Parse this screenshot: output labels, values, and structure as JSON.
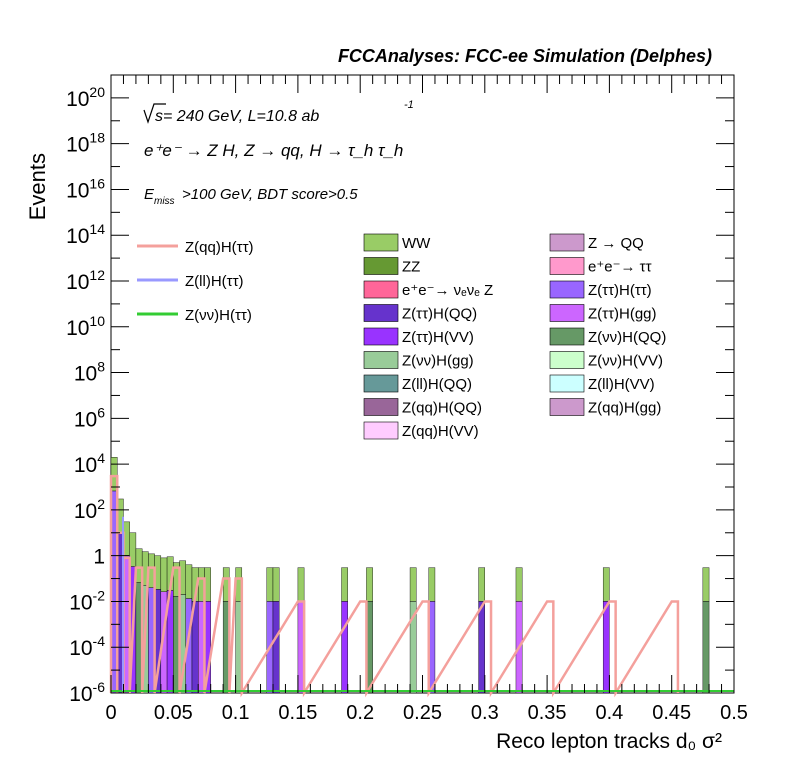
{
  "header": {
    "title": "FCCAnalyses: FCC-ee Simulation (Delphes)"
  },
  "annotations": {
    "energy_sqrt": "s",
    "energy_rest": " = 240 GeV, L=10.8 ab",
    "energy_exp": "-1",
    "process": "e⁺e⁻ → Z H, Z → qq, H → τ_h τ_h",
    "cut_E": "E",
    "cut_sub": "miss",
    "cut_rest": ">100 GeV, BDT score>0.5"
  },
  "chart_data": {
    "type": "bar",
    "title": "FCCAnalyses: FCC-ee Simulation (Delphes)",
    "xlabel": "Reco lepton tracks d₀ σ²",
    "ylabel": "Events",
    "yscale": "log",
    "xlim": [
      0,
      0.5
    ],
    "ylim": [
      1e-06,
      1e+21
    ],
    "x_ticks": [
      "0",
      "0.05",
      "0.1",
      "0.15",
      "0.2",
      "0.25",
      "0.3",
      "0.35",
      "0.4",
      "0.45",
      "0.5"
    ],
    "y_ticks": [
      {
        "base": "10",
        "exp": "-6"
      },
      {
        "base": "10",
        "exp": "-4"
      },
      {
        "base": "10",
        "exp": "-2"
      },
      {
        "base": "1",
        "exp": ""
      },
      {
        "base": "10",
        "exp": "2"
      },
      {
        "base": "10",
        "exp": "4"
      },
      {
        "base": "10",
        "exp": "6"
      },
      {
        "base": "10",
        "exp": "8"
      },
      {
        "base": "10",
        "exp": "10"
      },
      {
        "base": "10",
        "exp": "12"
      },
      {
        "base": "10",
        "exp": "14"
      },
      {
        "base": "10",
        "exp": "16"
      },
      {
        "base": "10",
        "exp": "18"
      },
      {
        "base": "10",
        "exp": "20"
      }
    ],
    "grid": false,
    "legend_position": "top-right",
    "signal_series": [
      {
        "name": "Z(qq)H(ττ)",
        "color": "#f4a09c"
      },
      {
        "name": "Z(ll)H(ττ)",
        "color": "#9999ff"
      },
      {
        "name": "Z(νν)H(ττ)",
        "color": "#33cc33"
      }
    ],
    "background_series": [
      {
        "name": "WW",
        "color": "#99cc66"
      },
      {
        "name": "Z → QQ",
        "color": "#cc99cc"
      },
      {
        "name": "ZZ",
        "color": "#669933"
      },
      {
        "name": "e⁺e⁻→ ττ",
        "color": "#ff99cc"
      },
      {
        "name": "e⁺e⁻→ νₑνₑ Z",
        "color": "#ff6699"
      },
      {
        "name": "Z(ττ)H(ττ)",
        "color": "#9966ff"
      },
      {
        "name": "Z(ττ)H(QQ)",
        "color": "#6633cc"
      },
      {
        "name": "Z(ττ)H(gg)",
        "color": "#cc66ff"
      },
      {
        "name": "Z(ττ)H(VV)",
        "color": "#9933ff"
      },
      {
        "name": "Z(νν)H(QQ)",
        "color": "#669966"
      },
      {
        "name": "Z(νν)H(gg)",
        "color": "#99cc99"
      },
      {
        "name": "Z(νν)H(VV)",
        "color": "#ccffcc"
      },
      {
        "name": "Z(ll)H(QQ)",
        "color": "#669999"
      },
      {
        "name": "Z(ll)H(VV)",
        "color": "#ccffff"
      },
      {
        "name": "Z(qq)H(QQ)",
        "color": "#996699"
      },
      {
        "name": "Z(qq)H(gg)",
        "color": "#cc99cc"
      },
      {
        "name": "Z(qq)H(VV)",
        "color": "#ffccff"
      }
    ],
    "bins": {
      "edges_start": 0,
      "bin_width": 0.005,
      "background_stack_top": [
        {
          "x": 0.0,
          "y": 20000
        },
        {
          "x": 0.005,
          "y": 300
        },
        {
          "x": 0.01,
          "y": 30
        },
        {
          "x": 0.015,
          "y": 10
        },
        {
          "x": 0.02,
          "y": 2
        },
        {
          "x": 0.025,
          "y": 1.5
        },
        {
          "x": 0.03,
          "y": 1.2
        },
        {
          "x": 0.035,
          "y": 1
        },
        {
          "x": 0.04,
          "y": 0.8
        },
        {
          "x": 0.045,
          "y": 0.9
        },
        {
          "x": 0.05,
          "y": 0.5
        },
        {
          "x": 0.055,
          "y": 0.6
        },
        {
          "x": 0.06,
          "y": 0.4
        },
        {
          "x": 0.065,
          "y": 0.3
        },
        {
          "x": 0.07,
          "y": 0.3
        },
        {
          "x": 0.075,
          "y": 0.3
        },
        {
          "x": 0.09,
          "y": 0.3
        },
        {
          "x": 0.1,
          "y": 0.3
        },
        {
          "x": 0.125,
          "y": 0.3
        },
        {
          "x": 0.13,
          "y": 0.3
        },
        {
          "x": 0.15,
          "y": 0.3
        },
        {
          "x": 0.185,
          "y": 0.3
        },
        {
          "x": 0.205,
          "y": 0.3
        },
        {
          "x": 0.24,
          "y": 0.3
        },
        {
          "x": 0.255,
          "y": 0.3
        },
        {
          "x": 0.295,
          "y": 0.3
        },
        {
          "x": 0.325,
          "y": 0.3
        },
        {
          "x": 0.395,
          "y": 0.3
        },
        {
          "x": 0.475,
          "y": 0.3
        }
      ],
      "signal_qqH": [
        {
          "x": 0.0,
          "y": 3000
        },
        {
          "x": 0.005,
          "y": 10
        },
        {
          "x": 0.01,
          "y": 0.8
        },
        {
          "x": 0.02,
          "y": 0.3
        },
        {
          "x": 0.03,
          "y": 0.3
        },
        {
          "x": 0.05,
          "y": 0.3
        },
        {
          "x": 0.07,
          "y": 0.1
        },
        {
          "x": 0.09,
          "y": 0.1
        },
        {
          "x": 0.1,
          "y": 0.1
        },
        {
          "x": 0.15,
          "y": 0.01
        },
        {
          "x": 0.2,
          "y": 0.01
        },
        {
          "x": 0.25,
          "y": 0.01
        },
        {
          "x": 0.3,
          "y": 0.01
        },
        {
          "x": 0.35,
          "y": 0.01
        },
        {
          "x": 0.4,
          "y": 0.01
        },
        {
          "x": 0.45,
          "y": 0.01
        }
      ]
    }
  }
}
